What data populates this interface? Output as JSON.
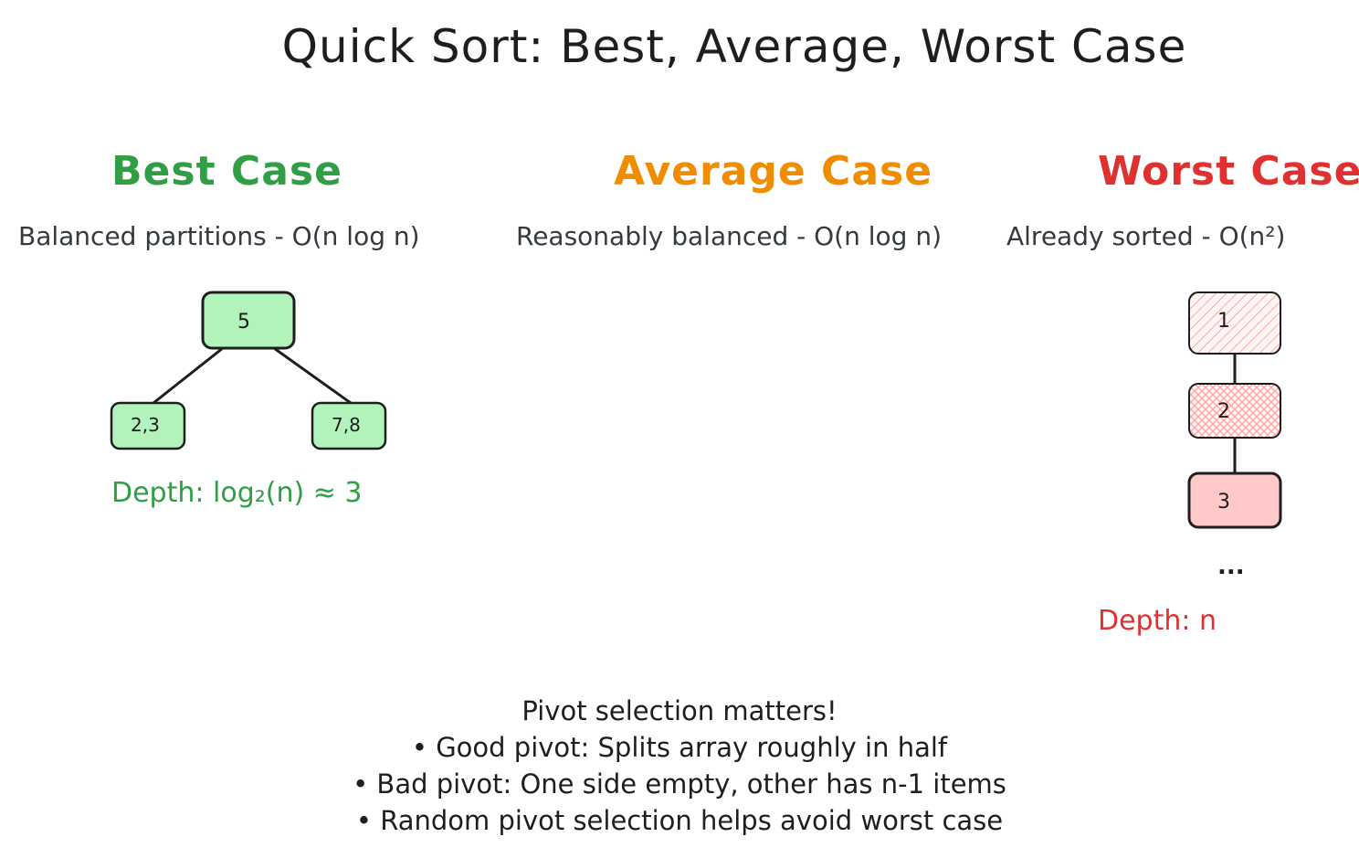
{
  "title": "Quick Sort: Best, Average, Worst Case",
  "colors": {
    "best": "#2f9e44",
    "average": "#f08c00",
    "worst": "#e03131",
    "best_node_fill": "#b2f2bb",
    "worst_node_fill": "#ffc9c9"
  },
  "best": {
    "heading": "Best Case",
    "subtitle": "Balanced partitions - O(n log n)",
    "root": "5",
    "left": "2,3",
    "right": "7,8",
    "depth": "Depth: log₂(n) ≈ 3"
  },
  "average": {
    "heading": "Average Case",
    "subtitle": "Reasonably balanced - O(n log n)"
  },
  "worst": {
    "heading": "Worst Case",
    "subtitle": "Already sorted - O(n²)",
    "nodes": [
      "1",
      "2",
      "3"
    ],
    "ellipsis": "...",
    "depth": "Depth: n"
  },
  "notes": {
    "heading": "Pivot selection matters!",
    "items": [
      "• Good pivot: Splits array roughly in half",
      "• Bad pivot: One side empty, other has n-1 items",
      "• Random pivot selection helps avoid worst case"
    ]
  }
}
